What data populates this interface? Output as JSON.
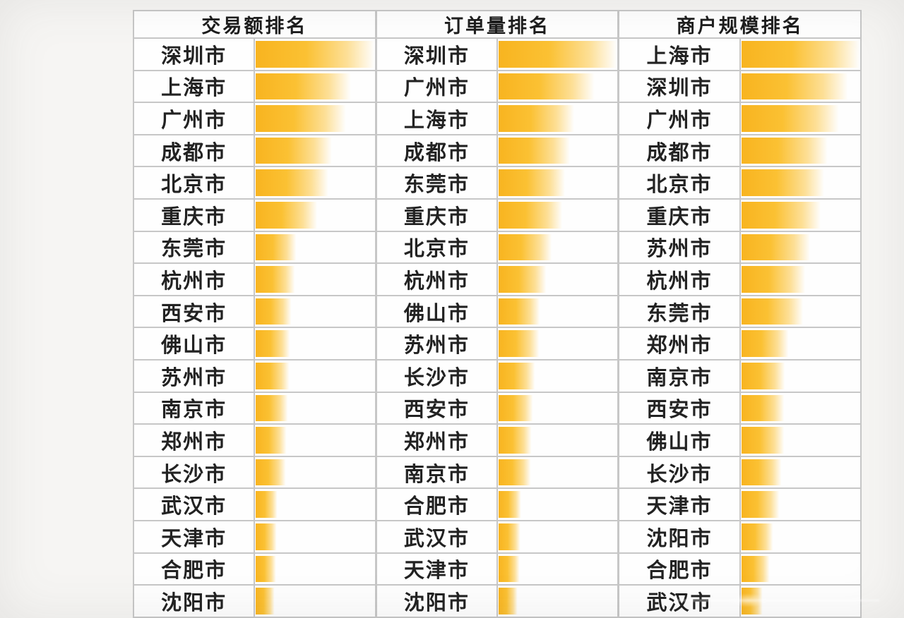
{
  "page": {
    "background": "#f6f5f3",
    "grid_line_color": "#c7c7c7",
    "cell_color": "#fefefe",
    "bar_color_solid": "#fbc133",
    "bar_color_edge": "#f8b420",
    "text_color": "#222222"
  },
  "chart_data": [
    {
      "type": "bar",
      "orientation": "horizontal",
      "title": "交易额排名",
      "legend_position": "none",
      "grid": true,
      "value_note": "bar lengths estimated as % of cell width; no numeric labels shown",
      "categories": [
        "深圳市",
        "上海市",
        "广州市",
        "成都市",
        "北京市",
        "重庆市",
        "东莞市",
        "杭州市",
        "西安市",
        "佛山市",
        "苏州市",
        "南京市",
        "郑州市",
        "长沙市",
        "武汉市",
        "天津市",
        "合肥市",
        "沈阳市"
      ],
      "values": [
        100,
        80,
        76,
        64,
        61,
        52,
        34,
        33,
        30,
        29,
        28,
        27,
        26,
        25,
        18,
        17.5,
        17,
        16
      ]
    },
    {
      "type": "bar",
      "orientation": "horizontal",
      "title": "订单量排名",
      "legend_position": "none",
      "grid": true,
      "value_note": "bar lengths estimated as % of cell width; no numeric labels shown",
      "categories": [
        "深圳市",
        "广州市",
        "上海市",
        "成都市",
        "东莞市",
        "重庆市",
        "北京市",
        "杭州市",
        "佛山市",
        "苏州市",
        "长沙市",
        "西安市",
        "郑州市",
        "南京市",
        "合肥市",
        "武汉市",
        "天津市",
        "沈阳市"
      ],
      "values": [
        100,
        81,
        64,
        60,
        56,
        54,
        45,
        40,
        35,
        34,
        31,
        29,
        28,
        27,
        19,
        18.5,
        18,
        16
      ]
    },
    {
      "type": "bar",
      "orientation": "horizontal",
      "title": "商户规模排名",
      "legend_position": "none",
      "grid": true,
      "value_note": "bar lengths estimated as % of cell width; no numeric labels shown",
      "categories": [
        "上海市",
        "深圳市",
        "广州市",
        "成都市",
        "北京市",
        "重庆市",
        "苏州市",
        "杭州市",
        "东莞市",
        "郑州市",
        "南京市",
        "西安市",
        "佛山市",
        "长沙市",
        "天津市",
        "沈阳市",
        "合肥市",
        "武汉市"
      ],
      "values": [
        100,
        90,
        82,
        73,
        70,
        67,
        58,
        54,
        52,
        40,
        37,
        36.5,
        36,
        34,
        32,
        27,
        24,
        18
      ]
    }
  ]
}
